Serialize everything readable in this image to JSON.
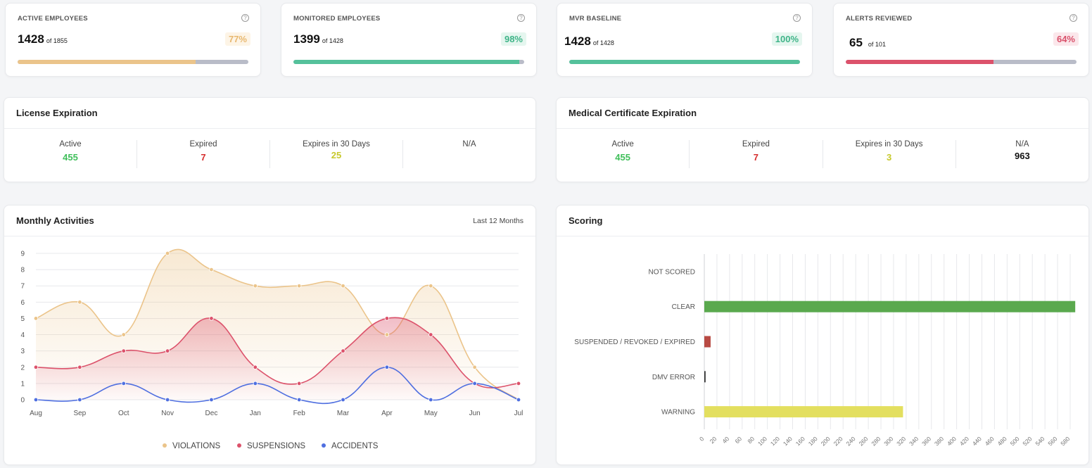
{
  "stats": [
    {
      "label": "ACTIVE EMPLOYEES",
      "value": "1428",
      "of": "of 1855",
      "pct": "77%",
      "fraction": 0.77,
      "color": "#ebc48a",
      "pct_color": "#e8b870",
      "pct_bg": "#fdf4e6"
    },
    {
      "label": "MONITORED EMPLOYEES",
      "value": "1399",
      "of": "of 1428",
      "pct": "98%",
      "fraction": 0.98,
      "color": "#55c19b",
      "pct_color": "#3fb488",
      "pct_bg": "#e5f6ef"
    },
    {
      "label": "MVR BASELINE",
      "value": "1428",
      "of": "of 1428",
      "pct": "100%",
      "fraction": 1.0,
      "color": "#55c19b",
      "pct_color": "#3fb488",
      "pct_bg": "#e5f6ef"
    },
    {
      "label": "ALERTS REVIEWED",
      "value": "65",
      "of": "of 101",
      "pct": "64%",
      "fraction": 0.64,
      "color": "#dc526b",
      "pct_color": "#d9506a",
      "pct_bg": "#fbe7eb"
    }
  ],
  "help_icon": "?",
  "license": {
    "title": "License Expiration",
    "cols": [
      {
        "label": "Active",
        "value": "455",
        "color": "#3fbf5a"
      },
      {
        "label": "Expired",
        "value": "7",
        "color": "#d62d2d"
      },
      {
        "label": "Expires in 30 Days",
        "value": "25",
        "color": "#c7c92b"
      },
      {
        "label": "N/A",
        "value": "",
        "color": "#111111"
      }
    ]
  },
  "medical": {
    "title": "Medical Certificate Expiration",
    "cols": [
      {
        "label": "Active",
        "value": "455",
        "color": "#3fbf5a"
      },
      {
        "label": "Expired",
        "value": "7",
        "color": "#d62d2d"
      },
      {
        "label": "Expires in 30 Days",
        "value": "3",
        "color": "#c7c92b"
      },
      {
        "label": "N/A",
        "value": "963",
        "color": "#111111"
      }
    ]
  },
  "monthly": {
    "title": "Monthly Activities",
    "range_label": "Last 12 Months"
  },
  "scoring": {
    "title": "Scoring"
  },
  "chart_data": [
    {
      "type": "line",
      "x": [
        "Aug",
        "Sep",
        "Oct",
        "Nov",
        "Dec",
        "Jan",
        "Feb",
        "Mar",
        "Apr",
        "May",
        "Jun",
        "Jul"
      ],
      "ylim": [
        0,
        9
      ],
      "yticks": [
        0,
        1,
        2,
        3,
        4,
        5,
        6,
        7,
        8,
        9
      ],
      "grid": true,
      "legend_position": "bottom",
      "series": [
        {
          "name": "VIOLATIONS",
          "values": [
            5,
            6,
            4,
            9,
            8,
            7,
            7,
            7,
            4,
            7,
            2,
            0
          ],
          "color": "#ebc48a",
          "area": true
        },
        {
          "name": "SUSPENSIONS",
          "values": [
            2,
            2,
            3,
            3,
            5,
            2,
            1,
            3,
            5,
            4,
            1,
            1
          ],
          "color": "#dc526b",
          "area": true
        },
        {
          "name": "ACCIDENTS",
          "values": [
            0,
            0,
            1,
            0,
            0,
            1,
            0,
            0,
            2,
            0,
            1,
            0
          ],
          "color": "#4f6fe0",
          "area": false
        }
      ]
    },
    {
      "type": "bar",
      "orientation": "horizontal",
      "categories": [
        "NOT SCORED",
        "CLEAR",
        "SUSPENDED / REVOKED / EXPIRED",
        "DMV ERROR",
        "WARNING"
      ],
      "values": [
        0,
        588,
        10,
        2,
        315
      ],
      "colors": [
        "#5aa94e",
        "#5aa94e",
        "#b84a43",
        "#333333",
        "#e3df5f"
      ],
      "xlim": [
        0,
        580
      ],
      "xticks": [
        0,
        20,
        40,
        60,
        80,
        100,
        120,
        140,
        160,
        180,
        200,
        220,
        240,
        260,
        280,
        300,
        320,
        340,
        360,
        380,
        400,
        420,
        440,
        460,
        480,
        500,
        520,
        540,
        560,
        580
      ],
      "grid": true
    }
  ]
}
